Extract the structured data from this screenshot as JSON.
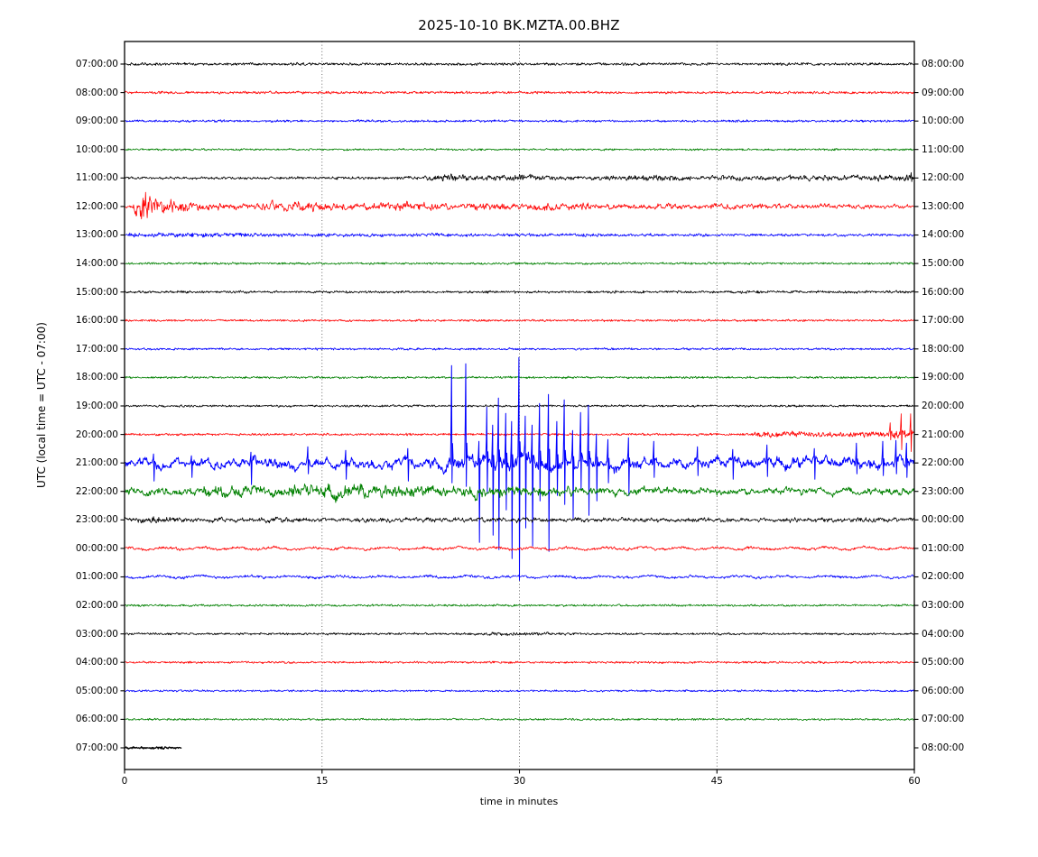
{
  "chart_data": {
    "type": "line",
    "subtype": "seismogram-helicorder-dayplot",
    "title": "2025-10-10 BK.MZTA.00.BHZ",
    "xlabel": "time in minutes",
    "ylabel": "UTC (local time = UTC - 07:00)",
    "xlim": [
      0,
      60
    ],
    "x_ticks": [
      "0",
      "15",
      "30",
      "45",
      "60"
    ],
    "x_tick_values": [
      0,
      15,
      30,
      45,
      60
    ],
    "x_gridlines": [
      15,
      30,
      45
    ],
    "grid_style": "dotted-vertical",
    "legend": "none",
    "trace_color_cycle": [
      "#000000",
      "#ff0000",
      "#0000ff",
      "#008000"
    ],
    "amplitude_units": "px half-range offset from row baseline (envelope breakpoints [minute, amplitude]; spikes [minute, up_px, down_px])",
    "rows": [
      {
        "utc_left": "07:00:00",
        "utc_right": "08:00:00",
        "color": "#000000",
        "env": 1.4
      },
      {
        "utc_left": "08:00:00",
        "utc_right": "09:00:00",
        "color": "#ff0000",
        "env": 1.3
      },
      {
        "utc_left": "09:00:00",
        "utc_right": "10:00:00",
        "color": "#0000ff",
        "env": 1.2
      },
      {
        "utc_left": "10:00:00",
        "utc_right": "11:00:00",
        "color": "#008000",
        "env": 1.0
      },
      {
        "utc_left": "11:00:00",
        "utc_right": "12:00:00",
        "color": "#000000",
        "smooth": 0.45,
        "hfw": 0.6,
        "lfw": 0.75,
        "env": [
          [
            0,
            1.3
          ],
          [
            22,
            1.4
          ],
          [
            23.5,
            2.6
          ],
          [
            25,
            3.6
          ],
          [
            27,
            2.4
          ],
          [
            29,
            3.4
          ],
          [
            31,
            3.2
          ],
          [
            33,
            2
          ],
          [
            36,
            2
          ],
          [
            39,
            2.8
          ],
          [
            41,
            2.6
          ],
          [
            43,
            2.2
          ],
          [
            47,
            2.4
          ],
          [
            52,
            2.6
          ],
          [
            56,
            2.8
          ],
          [
            59,
            3.4
          ],
          [
            60,
            3
          ]
        ],
        "spikes": [
          [
            59.75,
            6,
            4
          ]
        ]
      },
      {
        "utc_left": "12:00:00",
        "utc_right": "13:00:00",
        "color": "#ff0000",
        "smooth": 0.55,
        "hfw": 0.45,
        "lfw": 1.0,
        "env": [
          [
            0,
            1.2
          ],
          [
            0.5,
            1.6
          ],
          [
            0.8,
            9
          ],
          [
            1.1,
            13.5
          ],
          [
            2.3,
            11
          ],
          [
            3.2,
            6.5
          ],
          [
            4.5,
            4.8
          ],
          [
            6,
            3.6
          ],
          [
            9,
            3
          ],
          [
            12,
            4.6
          ],
          [
            14.5,
            4.8
          ],
          [
            17,
            3.4
          ],
          [
            19,
            4
          ],
          [
            21.5,
            4.4
          ],
          [
            24,
            3
          ],
          [
            26,
            3.4
          ],
          [
            28.5,
            3.2
          ],
          [
            31,
            3.4
          ],
          [
            33,
            3.6
          ],
          [
            35,
            3
          ],
          [
            38,
            2.6
          ],
          [
            41,
            2.8
          ],
          [
            44,
            2.8
          ],
          [
            47,
            2.4
          ],
          [
            50,
            2.2
          ],
          [
            54,
            2.2
          ],
          [
            57,
            2
          ],
          [
            60,
            2
          ]
        ]
      },
      {
        "utc_left": "13:00:00",
        "utc_right": "14:00:00",
        "color": "#0000ff",
        "smooth": 0.4,
        "hfw": 0.65,
        "lfw": 0.6,
        "env": [
          [
            0,
            2.1
          ],
          [
            6,
            2.2
          ],
          [
            12,
            1.9
          ],
          [
            20,
            1.7
          ],
          [
            30,
            1.6
          ],
          [
            45,
            1.4
          ],
          [
            60,
            1.3
          ]
        ]
      },
      {
        "utc_left": "14:00:00",
        "utc_right": "15:00:00",
        "color": "#008000",
        "env": 1.1
      },
      {
        "utc_left": "15:00:00",
        "utc_right": "16:00:00",
        "color": "#000000",
        "env": 1.3
      },
      {
        "utc_left": "16:00:00",
        "utc_right": "17:00:00",
        "color": "#ff0000",
        "env": 1.1
      },
      {
        "utc_left": "17:00:00",
        "utc_right": "18:00:00",
        "color": "#0000ff",
        "env": 1.1
      },
      {
        "utc_left": "18:00:00",
        "utc_right": "19:00:00",
        "color": "#008000",
        "env": 1.1
      },
      {
        "utc_left": "19:00:00",
        "utc_right": "20:00:00",
        "color": "#000000",
        "env": 1.1
      },
      {
        "utc_left": "20:00:00",
        "utc_right": "21:00:00",
        "color": "#ff0000",
        "smooth": 0.4,
        "hfw": 0.75,
        "lfw": 0.55,
        "env": [
          [
            0,
            1.1
          ],
          [
            47.6,
            1.1
          ],
          [
            48.1,
            3
          ],
          [
            50,
            2.7
          ],
          [
            53,
            2.5
          ],
          [
            56,
            2.5
          ],
          [
            57.8,
            2.8
          ],
          [
            58.4,
            4
          ],
          [
            60,
            4
          ]
        ],
        "spikes": [
          [
            58.15,
            13,
            6
          ],
          [
            59.0,
            23,
            17
          ],
          [
            59.72,
            23,
            19
          ]
        ]
      },
      {
        "utc_left": "21:00:00",
        "utc_right": "22:00:00",
        "color": "#0000ff",
        "smooth": 0.85,
        "hfw": 0.25,
        "lfw": 1.5,
        "lw": 1.0,
        "env": [
          [
            0,
            6.5
          ],
          [
            2,
            8
          ],
          [
            5,
            7
          ],
          [
            8,
            7.5
          ],
          [
            11,
            9
          ],
          [
            14,
            8
          ],
          [
            17,
            7
          ],
          [
            20,
            7.5
          ],
          [
            23,
            8
          ],
          [
            24.5,
            11
          ],
          [
            26,
            12
          ],
          [
            30,
            13
          ],
          [
            34,
            12
          ],
          [
            36,
            10
          ],
          [
            38,
            8.5
          ],
          [
            42,
            8
          ],
          [
            46,
            8.5
          ],
          [
            50,
            9
          ],
          [
            54,
            8.5
          ],
          [
            57,
            9
          ],
          [
            60,
            9.5
          ]
        ],
        "spikes": [
          [
            2.2,
            10,
            20
          ],
          [
            5.1,
            8,
            16
          ],
          [
            9.6,
            12,
            24
          ],
          [
            13.9,
            18,
            12
          ],
          [
            16.8,
            14,
            18
          ],
          [
            21.5,
            16,
            20
          ],
          [
            24.85,
            108,
            22
          ],
          [
            25.9,
            110,
            26
          ],
          [
            26.9,
            24,
            88
          ],
          [
            27.5,
            62,
            34
          ],
          [
            27.95,
            42,
            80
          ],
          [
            28.4,
            72,
            96
          ],
          [
            28.95,
            55,
            52
          ],
          [
            29.4,
            46,
            106
          ],
          [
            29.95,
            117,
            130
          ],
          [
            30.45,
            52,
            72
          ],
          [
            30.95,
            42,
            92
          ],
          [
            31.5,
            66,
            42
          ],
          [
            32.2,
            76,
            98
          ],
          [
            32.85,
            46,
            36
          ],
          [
            33.4,
            70,
            46
          ],
          [
            34.05,
            36,
            62
          ],
          [
            34.65,
            56,
            30
          ],
          [
            35.25,
            64,
            58
          ],
          [
            35.85,
            32,
            42
          ],
          [
            36.7,
            26,
            22
          ],
          [
            38.3,
            28,
            36
          ],
          [
            40.2,
            24,
            16
          ],
          [
            43.5,
            18,
            14
          ],
          [
            46.2,
            15,
            18
          ],
          [
            48.8,
            20,
            15
          ],
          [
            52.4,
            16,
            18
          ],
          [
            55.6,
            22,
            12
          ],
          [
            57.6,
            24,
            14
          ],
          [
            58.6,
            25,
            12
          ],
          [
            59.4,
            22,
            16
          ]
        ]
      },
      {
        "utc_left": "22:00:00",
        "utc_right": "23:00:00",
        "color": "#008000",
        "smooth": 0.78,
        "hfw": 0.35,
        "lfw": 1.3,
        "lw": 0.9,
        "env": [
          [
            0,
            4
          ],
          [
            2.5,
            5
          ],
          [
            5,
            5.5
          ],
          [
            7,
            7.5
          ],
          [
            9,
            7
          ],
          [
            11,
            6
          ],
          [
            13,
            8
          ],
          [
            15,
            9
          ],
          [
            17,
            9.5
          ],
          [
            19,
            8
          ],
          [
            21,
            9
          ],
          [
            23,
            7
          ],
          [
            25,
            6.5
          ],
          [
            27,
            7
          ],
          [
            29,
            7.5
          ],
          [
            31,
            6
          ],
          [
            33,
            5.5
          ],
          [
            35,
            5
          ],
          [
            38,
            4.6
          ],
          [
            42,
            4.4
          ],
          [
            46,
            4.2
          ],
          [
            50,
            4.4
          ],
          [
            54,
            4.2
          ],
          [
            57,
            4.4
          ],
          [
            60,
            4.6
          ]
        ]
      },
      {
        "utc_left": "23:00:00",
        "utc_right": "00:00:00",
        "color": "#000000",
        "smooth": 0.6,
        "hfw": 0.5,
        "lfw": 0.9,
        "env": [
          [
            0,
            2.6
          ],
          [
            1.5,
            3.6
          ],
          [
            3,
            3.2
          ],
          [
            5,
            2.4
          ],
          [
            8,
            2.2
          ],
          [
            11,
            2.8
          ],
          [
            14,
            2.3
          ],
          [
            18,
            2.2
          ],
          [
            22,
            2.4
          ],
          [
            26,
            2.3
          ],
          [
            30,
            2.6
          ],
          [
            35,
            2.3
          ],
          [
            40,
            2.3
          ],
          [
            45,
            2.4
          ],
          [
            50,
            2.3
          ],
          [
            55,
            2.4
          ],
          [
            58,
            2.6
          ],
          [
            60,
            2.4
          ]
        ]
      },
      {
        "utc_left": "00:00:00",
        "utc_right": "01:00:00",
        "color": "#ff0000",
        "smooth": 0.5,
        "hfw": 0.5,
        "lfw": 0.7,
        "env": 1.5,
        "swell": [
          2.8,
          1.1
        ]
      },
      {
        "utc_left": "01:00:00",
        "utc_right": "02:00:00",
        "color": "#0000ff",
        "smooth": 0.5,
        "hfw": 0.5,
        "lfw": 0.7,
        "env": 1.5,
        "swell": [
          3.4,
          1.0
        ]
      },
      {
        "utc_left": "02:00:00",
        "utc_right": "03:00:00",
        "color": "#008000",
        "env": 1.1
      },
      {
        "utc_left": "03:00:00",
        "utc_right": "04:00:00",
        "color": "#000000",
        "env": [
          [
            0,
            1.1
          ],
          [
            26,
            1.1
          ],
          [
            28,
            1.7
          ],
          [
            32,
            1.6
          ],
          [
            34,
            1.1
          ],
          [
            60,
            1.1
          ]
        ]
      },
      {
        "utc_left": "04:00:00",
        "utc_right": "05:00:00",
        "color": "#ff0000",
        "env": 1.1
      },
      {
        "utc_left": "05:00:00",
        "utc_right": "06:00:00",
        "color": "#0000ff",
        "env": 1.0
      },
      {
        "utc_left": "06:00:00",
        "utc_right": "07:00:00",
        "color": "#008000",
        "env": 1.0
      },
      {
        "utc_left": "07:00:00",
        "utc_right": "08:00:00",
        "color": "#000000",
        "env": 1.2,
        "span": [
          0,
          4.3
        ],
        "lw": 1.3
      }
    ]
  }
}
